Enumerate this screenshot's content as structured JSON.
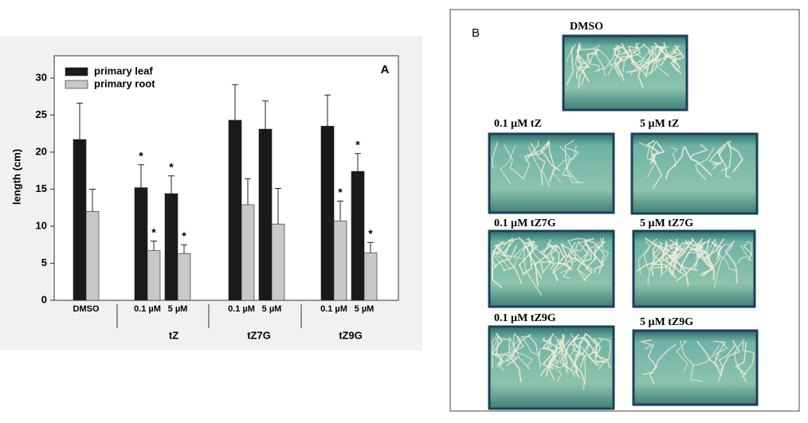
{
  "chart_data": {
    "type": "bar",
    "panel_label": "A",
    "y_label": "length (cm)",
    "categories": [
      "DMSO",
      "0.1 µM",
      "5 µM",
      "0.1 µM",
      "5 µM",
      "0.1 µM",
      "5 µM"
    ],
    "groups": [
      "tZ",
      "tZ7G",
      "tZ9G"
    ],
    "series": [
      {
        "name": "primary leaf",
        "color": "#1a1a1a",
        "values": [
          21.7,
          15.2,
          14.4,
          24.3,
          23.1,
          23.5,
          17.4
        ],
        "errors": [
          4.9,
          3.1,
          2.4,
          4.8,
          3.8,
          4.2,
          2.4
        ],
        "significance": [
          null,
          "*",
          "*",
          null,
          null,
          null,
          "*"
        ]
      },
      {
        "name": "primary root",
        "color": "#c8c8c8",
        "values": [
          12.0,
          6.7,
          6.3,
          12.9,
          10.3,
          10.7,
          6.4
        ],
        "errors": [
          3.0,
          1.3,
          1.2,
          3.5,
          4.8,
          2.7,
          1.4
        ],
        "significance": [
          null,
          "*",
          "*",
          null,
          null,
          "*",
          "*"
        ]
      }
    ],
    "ylim": [
      0,
      33
    ],
    "yticks": [
      0,
      5,
      10,
      15,
      20,
      25,
      30
    ],
    "legend": "top-left"
  },
  "panel_b": {
    "label": "B",
    "images": [
      "DMSO",
      "0.1 µM tZ",
      "5 µM tZ",
      "0.1 µM tZ7G",
      "5 µM tZ7G",
      "0.1 µM tZ9G",
      "5 µM tZ9G"
    ]
  }
}
